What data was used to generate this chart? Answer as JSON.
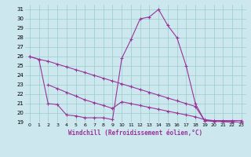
{
  "xlabel": "Windchill (Refroidissement éolien,°C)",
  "bg_color": "#cce8ee",
  "line_color": "#993399",
  "grid_color": "#99cccc",
  "xlim": [
    -0.5,
    23.5
  ],
  "ylim": [
    19,
    31.5
  ],
  "yticks": [
    19,
    20,
    21,
    22,
    23,
    24,
    25,
    26,
    27,
    28,
    29,
    30,
    31
  ],
  "xticks": [
    0,
    1,
    2,
    3,
    4,
    5,
    6,
    7,
    8,
    9,
    10,
    11,
    12,
    13,
    14,
    15,
    16,
    17,
    18,
    19,
    20,
    21,
    22,
    23
  ],
  "series1_x": [
    0,
    1,
    2,
    3,
    4,
    5,
    6,
    7,
    8,
    9,
    10,
    11,
    12,
    13,
    14,
    15,
    16,
    17,
    18,
    19,
    20,
    21,
    22,
    23
  ],
  "series1_y": [
    26,
    25.7,
    25.5,
    25.2,
    24.9,
    24.6,
    24.3,
    24.0,
    23.7,
    23.4,
    23.1,
    22.8,
    22.5,
    22.2,
    21.9,
    21.6,
    21.3,
    21.0,
    20.7,
    19.2,
    19.2,
    19.2,
    19.2,
    19.2
  ],
  "series2_x": [
    2,
    3,
    4,
    5,
    6,
    7,
    8,
    9,
    10,
    11,
    12,
    13,
    14,
    15,
    16,
    17,
    18,
    19,
    20,
    21,
    22,
    23
  ],
  "series2_y": [
    23,
    22.6,
    22.2,
    21.8,
    21.4,
    21.1,
    20.8,
    20.5,
    21.2,
    21.0,
    20.8,
    20.6,
    20.4,
    20.2,
    20.0,
    19.8,
    19.6,
    19.3,
    19.2,
    19.1,
    19.0,
    19.0
  ],
  "series3_x": [
    0,
    1,
    2,
    3,
    4,
    5,
    6,
    7,
    8,
    9,
    10,
    11,
    12,
    13,
    14,
    15,
    16,
    17,
    18,
    19,
    20,
    21,
    22,
    23
  ],
  "series3_y": [
    26,
    25.7,
    21.0,
    20.9,
    19.8,
    19.7,
    19.5,
    19.5,
    19.5,
    19.3,
    25.8,
    27.8,
    30.0,
    30.2,
    31.0,
    29.3,
    28.0,
    25.0,
    21.0,
    19.2,
    19.1,
    19.1,
    19.1,
    19.0
  ]
}
